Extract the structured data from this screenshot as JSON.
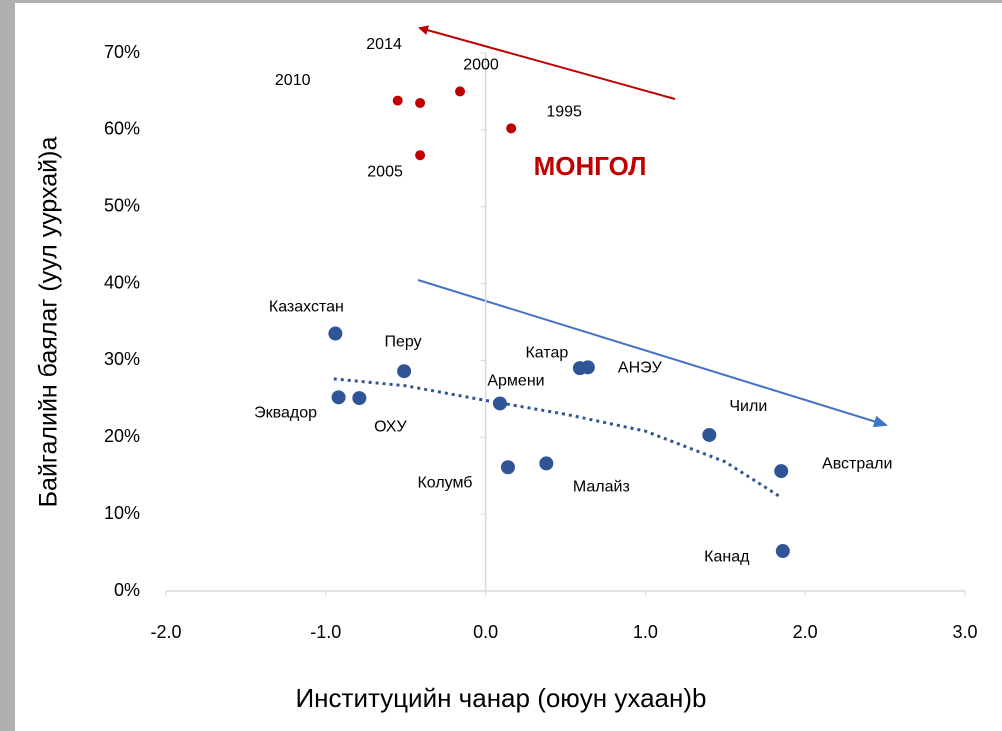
{
  "chart_data": {
    "type": "scatter",
    "annotation": "МОНГОЛ",
    "x_label": "Институцийн чанар (оюун ухаан)b",
    "y_label": "Байгалийн баялаг (уул уурхай)a",
    "xlim": [
      -2,
      3
    ],
    "ylim": [
      0,
      70
    ],
    "xticks": [
      {
        "value": -2,
        "label": "-2.0"
      },
      {
        "value": -1,
        "label": "-1.0"
      },
      {
        "value": 0,
        "label": "0.0"
      },
      {
        "value": 1,
        "label": "1.0"
      },
      {
        "value": 2,
        "label": "2.0"
      },
      {
        "value": 3,
        "label": "3.0"
      }
    ],
    "yticks": [
      {
        "value": 0,
        "label": "0%"
      },
      {
        "value": 10,
        "label": "10%"
      },
      {
        "value": 20,
        "label": "20%"
      },
      {
        "value": 30,
        "label": "30%"
      },
      {
        "value": 40,
        "label": "40%"
      },
      {
        "value": 50,
        "label": "50%"
      },
      {
        "value": 60,
        "label": "60%"
      },
      {
        "value": 70,
        "label": "70%"
      }
    ],
    "series": [
      {
        "color": "#c00000",
        "labels": [
          "2014",
          "2010",
          "2000",
          "1995",
          "2005"
        ],
        "x": [
          -0.41,
          -0.55,
          -0.16,
          0.16,
          -0.41
        ],
        "values": [
          63.5,
          63.8,
          65.0,
          60.2,
          56.7
        ]
      },
      {
        "color": "#2f5597",
        "labels": [
          "Казахстан",
          "Перу",
          "Эквадор",
          "ОХУ",
          "Армени",
          "Катар",
          "АНЭУ",
          "Чили",
          "Колумб",
          "Малайз",
          "Австрали",
          "Канад"
        ],
        "x": [
          -0.94,
          -0.51,
          -0.92,
          -0.79,
          0.09,
          0.59,
          0.64,
          1.4,
          0.14,
          0.38,
          1.85,
          1.86
        ],
        "values": [
          33.5,
          28.6,
          25.2,
          25.1,
          24.4,
          29.0,
          29.1,
          20.3,
          16.1,
          16.6,
          15.6,
          5.2
        ]
      }
    ],
    "trendline": {
      "color": "#2f5597",
      "x": [
        -0.95,
        -0.5,
        0,
        0.5,
        1,
        1.5,
        1.84
      ],
      "values": [
        27.6,
        26.7,
        24.8,
        23.0,
        20.8,
        16.8,
        12.3
      ]
    }
  }
}
